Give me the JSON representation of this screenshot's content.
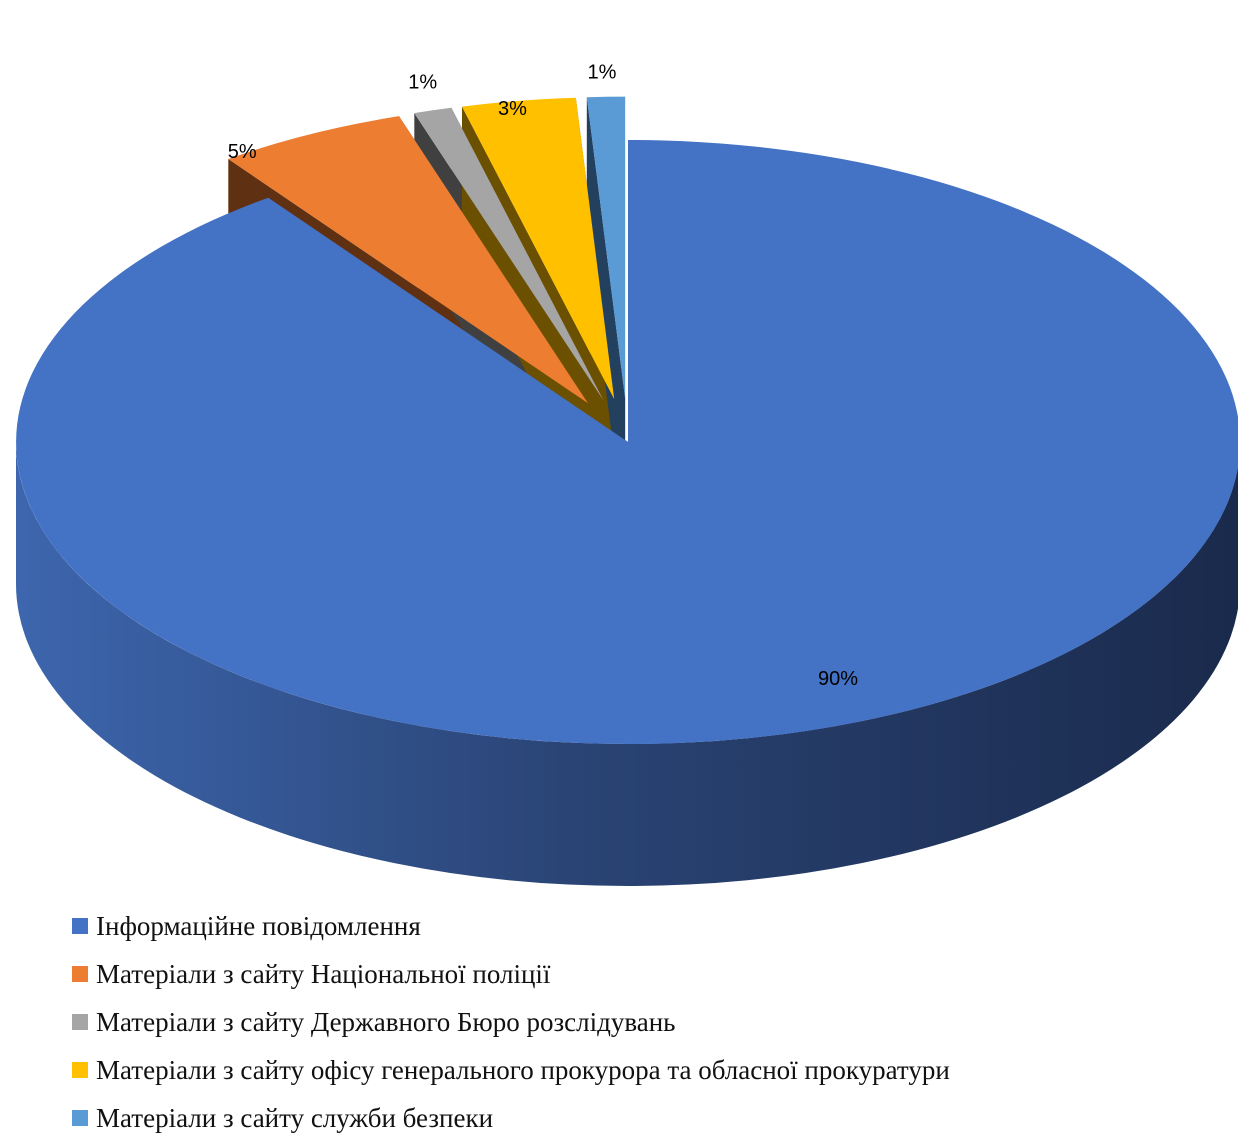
{
  "chart_data": {
    "type": "pie",
    "style": "3d-exploded",
    "legend_position": "bottom",
    "series": [
      {
        "name": "Інформаційне повідомлення",
        "value": 90,
        "label": "90%",
        "color": "#4472C4"
      },
      {
        "name": "Матеріали з сайту Національної поліції",
        "value": 5,
        "label": "5%",
        "color": "#ED7D31"
      },
      {
        "name": "Матеріали з сайту Державного Бюро розслідувань",
        "value": 1,
        "label": "1%",
        "color": "#A5A5A5"
      },
      {
        "name": "Матеріали з сайту офісу генерального прокурора та обласної прокуратури",
        "value": 3,
        "label": "3%",
        "color": "#FFC000"
      },
      {
        "name": "Матеріали з сайту служби безпеки",
        "value": 1,
        "label": "1%",
        "color": "#5B9BD5"
      }
    ]
  }
}
